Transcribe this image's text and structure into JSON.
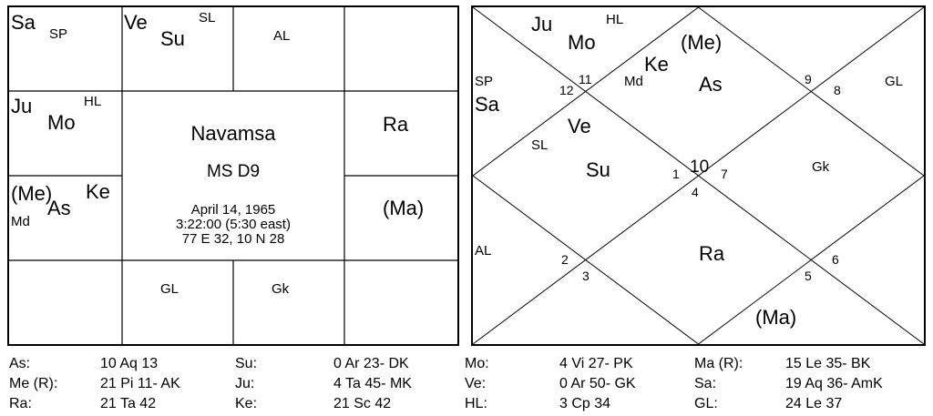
{
  "south_chart": {
    "cells": {
      "pisces": [
        {
          "text": "Sa"
        },
        {
          "text": "SP"
        }
      ],
      "aries": [
        {
          "text": "Ve"
        },
        {
          "text": "Su"
        },
        {
          "text": "SL"
        }
      ],
      "taurus": [
        {
          "text": "AL"
        }
      ],
      "gemini": [],
      "aquarius": [
        {
          "text": "Ju"
        },
        {
          "text": "Mo"
        },
        {
          "text": "HL"
        }
      ],
      "cancer": [
        {
          "text": "Ra"
        }
      ],
      "capricorn": [
        {
          "text": "(Me)"
        },
        {
          "text": "Ke"
        },
        {
          "text": "As"
        },
        {
          "text": "Md"
        }
      ],
      "leo": [
        {
          "text": "(Ma)"
        }
      ],
      "sagittarius": [],
      "scorpio": [
        {
          "text": "GL"
        }
      ],
      "libra": [
        {
          "text": "Gk"
        }
      ],
      "virgo": []
    },
    "center": {
      "title": "Navamsa",
      "subtitle": "MS D9",
      "date": "April 14, 1965",
      "time": "3:22:00 (5:30 east)",
      "coords": "77 E 32, 10 N 28"
    }
  },
  "north_chart": {
    "house_numbers": [
      "12",
      "11",
      "9",
      "8",
      "1",
      "10",
      "7",
      "4",
      "2",
      "3",
      "5",
      "6"
    ],
    "planets": {
      "ju": "Ju",
      "mo": "Mo",
      "hl": "HL",
      "me": "(Me)",
      "ke": "Ke",
      "md": "Md",
      "as": "As",
      "sp": "SP",
      "sa": "Sa",
      "gl": "GL",
      "ve": "Ve",
      "sl": "SL",
      "su": "Su",
      "gk": "Gk",
      "al": "AL",
      "ra": "Ra",
      "ma": "(Ma)"
    }
  },
  "positions": [
    [
      {
        "label": "As:",
        "value": "10 Aq 13"
      },
      {
        "label": "Su:",
        "value": "0 Ar 23- DK"
      },
      {
        "label": "Mo:",
        "value": "4 Vi 27- PK"
      },
      {
        "label": "Ma (R):",
        "value": "15 Le 35- BK"
      }
    ],
    [
      {
        "label": "Me (R):",
        "value": "21 Pi 11- AK"
      },
      {
        "label": "Ju:",
        "value": "4 Ta 45- MK"
      },
      {
        "label": "Ve:",
        "value": "0 Ar 50- GK"
      },
      {
        "label": "Sa:",
        "value": "19 Aq 36- AmK"
      }
    ],
    [
      {
        "label": "Ra:",
        "value": "21 Ta 42"
      },
      {
        "label": "Ke:",
        "value": "21 Sc 42"
      },
      {
        "label": "HL:",
        "value": "3 Cp 34"
      },
      {
        "label": "GL:",
        "value": "24 Le 37"
      }
    ]
  ]
}
